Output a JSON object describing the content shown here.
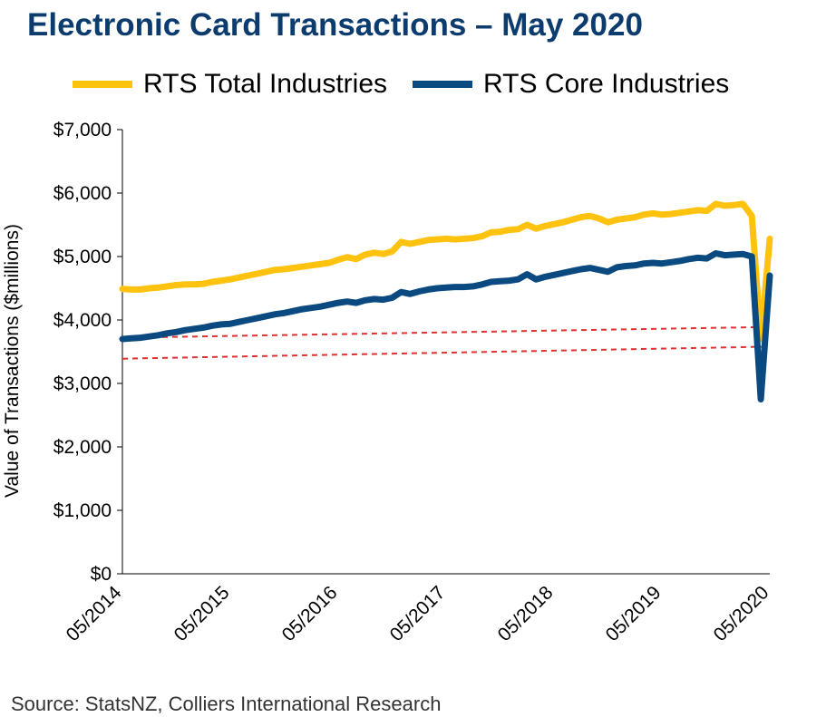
{
  "title": "Electronic Card Transactions – May 2020",
  "source": "Source: StatsNZ, Colliers International Research",
  "chart_data": {
    "type": "line",
    "title": "Electronic Card Transactions – May 2020",
    "ylabel": "Value of Transactions ($millions)",
    "xlabel": "",
    "ylim": [
      0,
      7000
    ],
    "yticks": [
      0,
      1000,
      2000,
      3000,
      4000,
      5000,
      6000,
      7000
    ],
    "ytick_labels": [
      "$0",
      "$1,000",
      "$2,000",
      "$3,000",
      "$4,000",
      "$5,000",
      "$6,000",
      "$7,000"
    ],
    "xtick_labels": [
      "05/2014",
      "05/2015",
      "05/2016",
      "05/2017",
      "05/2018",
      "05/2019",
      "05/2020"
    ],
    "x_range": [
      "2014-05",
      "2020-05"
    ],
    "legend_position": "top",
    "grid": false,
    "series": [
      {
        "name": "RTS Total Industries",
        "color": "#ffc20e",
        "x": [
          "2014-05",
          "2014-06",
          "2014-07",
          "2014-08",
          "2014-09",
          "2014-10",
          "2014-11",
          "2014-12",
          "2015-01",
          "2015-02",
          "2015-03",
          "2015-04",
          "2015-05",
          "2015-06",
          "2015-07",
          "2015-08",
          "2015-09",
          "2015-10",
          "2015-11",
          "2015-12",
          "2016-01",
          "2016-02",
          "2016-03",
          "2016-04",
          "2016-05",
          "2016-06",
          "2016-07",
          "2016-08",
          "2016-09",
          "2016-10",
          "2016-11",
          "2016-12",
          "2017-01",
          "2017-02",
          "2017-03",
          "2017-04",
          "2017-05",
          "2017-06",
          "2017-07",
          "2017-08",
          "2017-09",
          "2017-10",
          "2017-11",
          "2017-12",
          "2018-01",
          "2018-02",
          "2018-03",
          "2018-04",
          "2018-05",
          "2018-06",
          "2018-07",
          "2018-08",
          "2018-09",
          "2018-10",
          "2018-11",
          "2018-12",
          "2019-01",
          "2019-02",
          "2019-03",
          "2019-04",
          "2019-05",
          "2019-06",
          "2019-07",
          "2019-08",
          "2019-09",
          "2019-10",
          "2019-11",
          "2019-12",
          "2020-01",
          "2020-02",
          "2020-03",
          "2020-04",
          "2020-05"
        ],
        "values": [
          4490,
          4480,
          4480,
          4500,
          4510,
          4530,
          4550,
          4560,
          4560,
          4570,
          4600,
          4620,
          4640,
          4670,
          4700,
          4730,
          4760,
          4790,
          4800,
          4820,
          4840,
          4860,
          4880,
          4900,
          4950,
          4990,
          4960,
          5030,
          5060,
          5040,
          5080,
          5230,
          5200,
          5230,
          5260,
          5270,
          5280,
          5270,
          5280,
          5290,
          5320,
          5380,
          5390,
          5420,
          5430,
          5500,
          5440,
          5480,
          5510,
          5540,
          5580,
          5620,
          5640,
          5600,
          5540,
          5580,
          5600,
          5620,
          5660,
          5680,
          5660,
          5670,
          5690,
          5710,
          5730,
          5720,
          5830,
          5800,
          5810,
          5830,
          5640,
          3700,
          5280
        ]
      },
      {
        "name": "RTS Core Industries",
        "color": "#0b4a80",
        "x": [
          "2014-05",
          "2014-06",
          "2014-07",
          "2014-08",
          "2014-09",
          "2014-10",
          "2014-11",
          "2014-12",
          "2015-01",
          "2015-02",
          "2015-03",
          "2015-04",
          "2015-05",
          "2015-06",
          "2015-07",
          "2015-08",
          "2015-09",
          "2015-10",
          "2015-11",
          "2015-12",
          "2016-01",
          "2016-02",
          "2016-03",
          "2016-04",
          "2016-05",
          "2016-06",
          "2016-07",
          "2016-08",
          "2016-09",
          "2016-10",
          "2016-11",
          "2016-12",
          "2017-01",
          "2017-02",
          "2017-03",
          "2017-04",
          "2017-05",
          "2017-06",
          "2017-07",
          "2017-08",
          "2017-09",
          "2017-10",
          "2017-11",
          "2017-12",
          "2018-01",
          "2018-02",
          "2018-03",
          "2018-04",
          "2018-05",
          "2018-06",
          "2018-07",
          "2018-08",
          "2018-09",
          "2018-10",
          "2018-11",
          "2018-12",
          "2019-01",
          "2019-02",
          "2019-03",
          "2019-04",
          "2019-05",
          "2019-06",
          "2019-07",
          "2019-08",
          "2019-09",
          "2019-10",
          "2019-11",
          "2019-12",
          "2020-01",
          "2020-02",
          "2020-03",
          "2020-04",
          "2020-05"
        ],
        "values": [
          3700,
          3710,
          3720,
          3740,
          3760,
          3790,
          3810,
          3840,
          3860,
          3880,
          3910,
          3930,
          3940,
          3970,
          4000,
          4030,
          4060,
          4090,
          4110,
          4140,
          4170,
          4190,
          4210,
          4240,
          4270,
          4290,
          4270,
          4310,
          4330,
          4320,
          4350,
          4440,
          4410,
          4450,
          4480,
          4500,
          4510,
          4520,
          4520,
          4530,
          4560,
          4600,
          4610,
          4620,
          4640,
          4720,
          4640,
          4680,
          4710,
          4740,
          4770,
          4800,
          4820,
          4790,
          4760,
          4830,
          4850,
          4860,
          4890,
          4900,
          4890,
          4910,
          4930,
          4960,
          4980,
          4970,
          5050,
          5020,
          5030,
          5040,
          5000,
          2750,
          4700
        ]
      },
      {
        "name": "",
        "color": "#e03030",
        "dashed": true,
        "x": [
          "2014-05",
          "2020-05"
        ],
        "values": [
          3720,
          3890
        ]
      },
      {
        "name": "",
        "color": "#e03030",
        "dashed": true,
        "x": [
          "2014-05",
          "2020-05"
        ],
        "values": [
          3390,
          3580
        ]
      }
    ]
  }
}
